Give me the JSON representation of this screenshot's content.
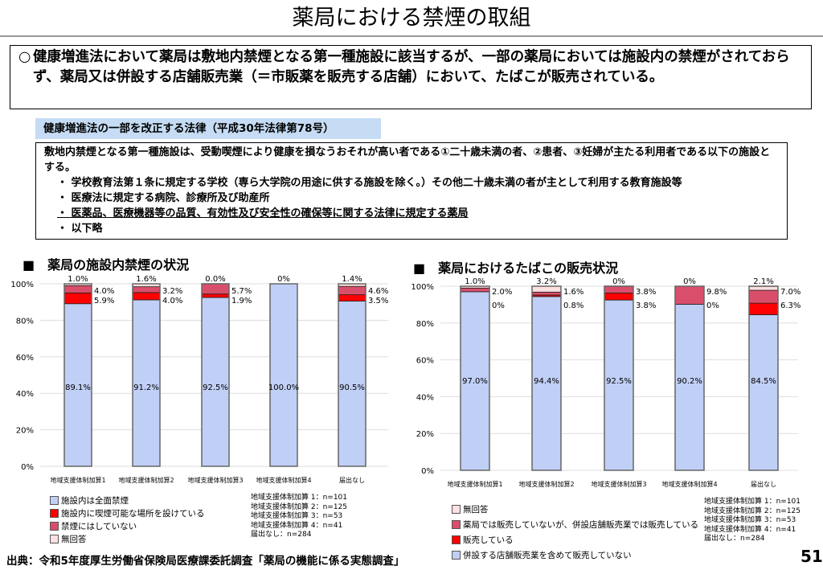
{
  "title": "薬局における禁煙の取組",
  "box1": {
    "mark": "○",
    "text": "健康増進法において薬局は敷地内禁煙となる第一種施設に該当するが、一部の薬局においては施設内の禁煙がされておらず、薬局又は併設する店舗販売業（＝市販薬を販売する店舗）において、たばこが販売されている。"
  },
  "law": {
    "label": "健康増進法の一部を改正する法律（平成30年法律第78号）",
    "intro": "敷地内禁煙となる第一種施設は、受動喫煙により健康を損なうおそれが高い者である①二十歳未満の者、②患者、③妊婦が主たる利用者である以下の施設とする。",
    "items": [
      "・ 学校教育法第１条に規定する学校（専ら大学院の用途に供する施設を除く。）その他二十歳未満の者が主として利用する教育施設等",
      "・ 医療法に規定する病院、診療所及び助産所",
      "・ 医薬品、医療機器等の品質、有効性及び安全性の確保等に関する法律に規定する薬局",
      "・ 以下略"
    ]
  },
  "chart_data": [
    {
      "type": "bar",
      "stacked": true,
      "title": "■　薬局の施設内禁煙の状況",
      "categories": [
        "地域支援体制加算1",
        "地域支援体制加算2",
        "地域支援体制加算3",
        "地域支援体制加算4",
        "届出なし"
      ],
      "yticks": [
        "0%",
        "20%",
        "40%",
        "60%",
        "80%",
        "100%"
      ],
      "ylim": [
        0,
        100
      ],
      "series": [
        {
          "name": "施設内は全面禁煙",
          "color": "#c0cff5",
          "values": [
            89.1,
            91.2,
            92.5,
            100.0,
            90.5
          ],
          "labels": [
            "89.1%",
            "91.2%",
            "92.5%",
            "100.0%",
            "90.5%"
          ]
        },
        {
          "name": "施設内に喫煙可能な場所を設けている",
          "color": "#ff0000",
          "values": [
            5.9,
            4.0,
            1.9,
            0,
            3.5
          ],
          "labels": [
            "5.9%",
            "4.0%",
            "1.9%",
            "",
            "3.5%"
          ]
        },
        {
          "name": "禁煙にはしていない",
          "color": "#d94f6b",
          "values": [
            4.0,
            3.2,
            5.7,
            0,
            4.6
          ],
          "labels": [
            "4.0%",
            "3.2%",
            "5.7%",
            "",
            "4.6%"
          ]
        },
        {
          "name": "無回答",
          "color": "#fde0e0",
          "values": [
            1.0,
            1.6,
            0.0,
            0,
            1.4
          ],
          "labels": [
            "1.0%",
            "1.6%",
            "0.0%",
            "0%",
            "1.4%"
          ]
        }
      ],
      "n": [
        "地域支援体制加算 1：n=101",
        "地域支援体制加算 2：n=125",
        "地域支援体制加算 3：n=53",
        "地域支援体制加算 4：n=41",
        "届出なし：n=284"
      ]
    },
    {
      "type": "bar",
      "stacked": true,
      "title": "■　薬局におけるたばこの販売状況",
      "categories": [
        "地域支援体制加算1",
        "地域支援体制加算2",
        "地域支援体制加算3",
        "地域支援体制加算4",
        "届出なし"
      ],
      "yticks": [
        "0%",
        "20%",
        "40%",
        "60%",
        "80%",
        "100%"
      ],
      "ylim": [
        0,
        100
      ],
      "series": [
        {
          "name": "併設する店舗販売業を含めて販売していない",
          "color": "#c0cff5",
          "values": [
            97.0,
            94.4,
            92.5,
            90.2,
            84.5
          ],
          "labels": [
            "97.0%",
            "94.4%",
            "92.5%",
            "90.2%",
            "84.5%"
          ]
        },
        {
          "name": "販売している",
          "color": "#ff0000",
          "values": [
            0,
            0.8,
            3.8,
            0,
            6.3
          ],
          "labels": [
            "0%",
            "0.8%",
            "3.8%",
            "0%",
            "6.3%"
          ]
        },
        {
          "name": "薬局では販売していないが、併設店舗販売業では販売している",
          "color": "#d94f6b",
          "values": [
            2.0,
            1.6,
            3.8,
            9.8,
            7.0
          ],
          "labels": [
            "2.0%",
            "1.6%",
            "3.8%",
            "9.8%",
            "7.0%"
          ]
        },
        {
          "name": "無回答",
          "color": "#fde0e0",
          "values": [
            1.0,
            3.2,
            0,
            0,
            2.1
          ],
          "labels": [
            "1.0%",
            "3.2%",
            "0%",
            "0%",
            "2.1%"
          ]
        }
      ],
      "n": [
        "地域支援体制加算 1：n=101",
        "地域支援体制加算 2：n=125",
        "地域支援体制加算 3：n=53",
        "地域支援体制加算 4：n=41",
        "届出なし：n=284"
      ]
    }
  ],
  "source": "出典：令和5年度厚生労働省保険局医療課委託調査「薬局の機能に係る実態調査」",
  "page": "51"
}
